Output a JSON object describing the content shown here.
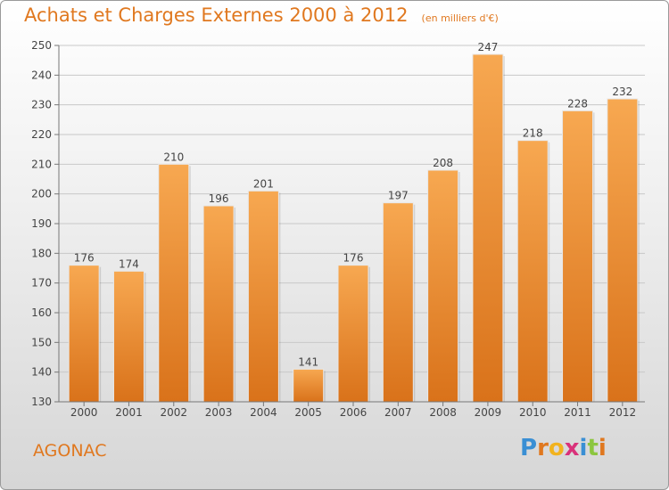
{
  "header": {
    "title": "Achats et Charges Externes 2000 à 2012",
    "subtitle": "(en milliers d'€)"
  },
  "footer": {
    "place": "AGONAC",
    "brand": "Proxiti"
  },
  "colors": {
    "accent": "#e0781f",
    "bar": "#f29a3a"
  },
  "chart_data": {
    "type": "bar",
    "categories": [
      "2000",
      "2001",
      "2002",
      "2003",
      "2004",
      "2005",
      "2006",
      "2007",
      "2008",
      "2009",
      "2010",
      "2011",
      "2012"
    ],
    "values": [
      176,
      174,
      210,
      196,
      201,
      141,
      176,
      197,
      208,
      247,
      218,
      228,
      232
    ],
    "title": "Achats et Charges Externes 2000 à 2012",
    "subtitle": "(en milliers d'€)",
    "xlabel": "",
    "ylabel": "",
    "ylim": [
      130,
      250
    ],
    "yticks": [
      130,
      140,
      150,
      160,
      170,
      180,
      190,
      200,
      210,
      220,
      230,
      240,
      250
    ],
    "grid": true,
    "data_labels": true
  }
}
